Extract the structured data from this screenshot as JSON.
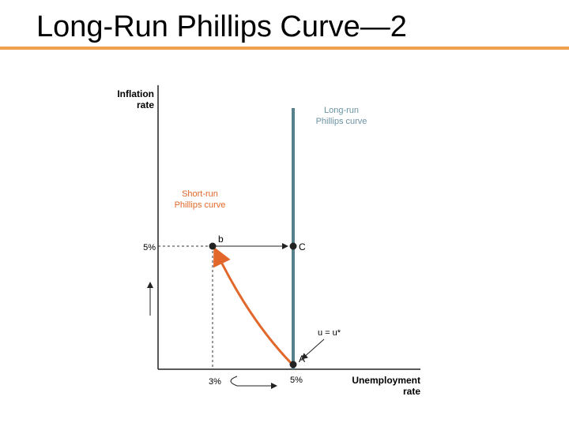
{
  "header": {
    "title": "Long-Run Phillips Curve—2"
  },
  "axes": {
    "y_label": [
      "Inflation",
      "rate"
    ],
    "x_label": [
      "Unemployment",
      "rate"
    ]
  },
  "curves": {
    "long_run": [
      "Long-run",
      "Phillips curve"
    ],
    "short_run": [
      "Short-run",
      "Phillips curve"
    ]
  },
  "points": {
    "b": "b",
    "c": "C",
    "a": "A"
  },
  "ticks": {
    "y_5": "5%",
    "x_3": "3%",
    "x_5": "5%"
  },
  "annotation": "u = u*"
}
